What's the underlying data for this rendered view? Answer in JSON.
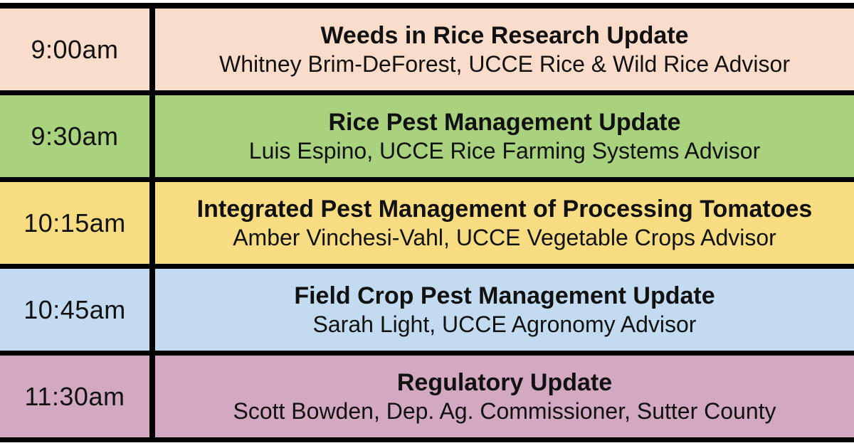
{
  "schedule": {
    "border_color": "#000000",
    "text_color": "#111111",
    "rows": [
      {
        "time": "9:00am",
        "title": "Weeds in Rice Research Update",
        "speaker": "Whitney Brim-DeForest, UCCE Rice & Wild Rice Advisor",
        "color": "#fadccb"
      },
      {
        "time": "9:30am",
        "title": "Rice Pest Management Update",
        "speaker": "Luis Espino, UCCE Rice Farming Systems Advisor",
        "color": "#a9d27f"
      },
      {
        "time": "10:15am",
        "title": "Integrated Pest Management of Processing Tomatoes",
        "speaker": "Amber Vinchesi-Vahl, UCCE Vegetable Crops Advisor",
        "color": "#f8dc82"
      },
      {
        "time": "10:45am",
        "title": "Field Crop Pest Management Update",
        "speaker": "Sarah Light, UCCE Agronomy Advisor",
        "color": "#c2dbf0"
      },
      {
        "time": "11:30am",
        "title": "Regulatory Update",
        "speaker": "Scott Bowden, Dep. Ag. Commissioner, Sutter County",
        "color": "#d3a9c2"
      }
    ]
  }
}
